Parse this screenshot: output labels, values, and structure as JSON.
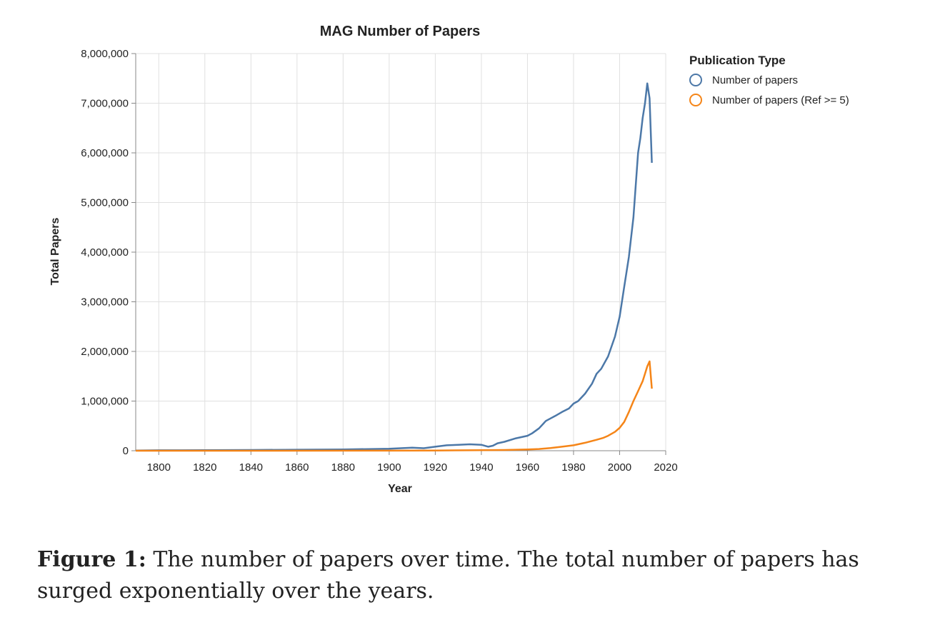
{
  "chart_data": {
    "type": "line",
    "title": "MAG Number of Papers",
    "xlabel": "Year",
    "ylabel": "Total Papers",
    "xlim": [
      1790,
      2020
    ],
    "ylim": [
      0,
      8000000
    ],
    "x_ticks": [
      1800,
      1820,
      1840,
      1860,
      1880,
      1900,
      1920,
      1940,
      1960,
      1980,
      2000,
      2020
    ],
    "y_ticks": [
      0,
      1000000,
      2000000,
      3000000,
      4000000,
      5000000,
      6000000,
      7000000,
      8000000
    ],
    "y_tick_labels": [
      "0",
      "1,000,000",
      "2,000,000",
      "3,000,000",
      "4,000,000",
      "5,000,000",
      "6,000,000",
      "7,000,000",
      "8,000,000"
    ],
    "grid": true,
    "legend": {
      "title": "Publication Type",
      "placement": "right"
    },
    "series": [
      {
        "name": "Number of papers",
        "color": "#4c78a8",
        "x": [
          1790,
          1800,
          1820,
          1840,
          1860,
          1880,
          1900,
          1910,
          1915,
          1920,
          1925,
          1930,
          1935,
          1940,
          1943,
          1945,
          1947,
          1950,
          1955,
          1960,
          1962,
          1965,
          1968,
          1970,
          1972,
          1975,
          1978,
          1980,
          1982,
          1985,
          1988,
          1990,
          1992,
          1995,
          1998,
          2000,
          2002,
          2004,
          2006,
          2008,
          2009,
          2010,
          2011,
          2012,
          2013,
          2014
        ],
        "y": [
          5000,
          8000,
          10000,
          15000,
          20000,
          25000,
          40000,
          60000,
          50000,
          80000,
          110000,
          120000,
          130000,
          120000,
          80000,
          100000,
          150000,
          180000,
          250000,
          300000,
          350000,
          450000,
          600000,
          650000,
          700000,
          780000,
          850000,
          950000,
          1000000,
          1150000,
          1350000,
          1550000,
          1650000,
          1900000,
          2300000,
          2700000,
          3300000,
          3900000,
          4700000,
          6000000,
          6300000,
          6700000,
          7000000,
          7400000,
          7100000,
          5800000
        ]
      },
      {
        "name": "Number of papers (Ref >= 5)",
        "color": "#f58518",
        "x": [
          1790,
          1900,
          1920,
          1940,
          1950,
          1960,
          1965,
          1970,
          1975,
          1980,
          1985,
          1990,
          1993,
          1995,
          1998,
          2000,
          2002,
          2004,
          2006,
          2008,
          2009,
          2010,
          2011,
          2012,
          2013,
          2014
        ],
        "y": [
          0,
          2000,
          5000,
          10000,
          15000,
          25000,
          35000,
          55000,
          80000,
          110000,
          160000,
          220000,
          260000,
          300000,
          380000,
          460000,
          580000,
          780000,
          1000000,
          1200000,
          1300000,
          1400000,
          1550000,
          1700000,
          1800000,
          1250000
        ]
      }
    ]
  },
  "caption": {
    "label": "Figure 1:",
    "text": "The number of papers over time. The total number of papers has surged exponentially over the years."
  }
}
